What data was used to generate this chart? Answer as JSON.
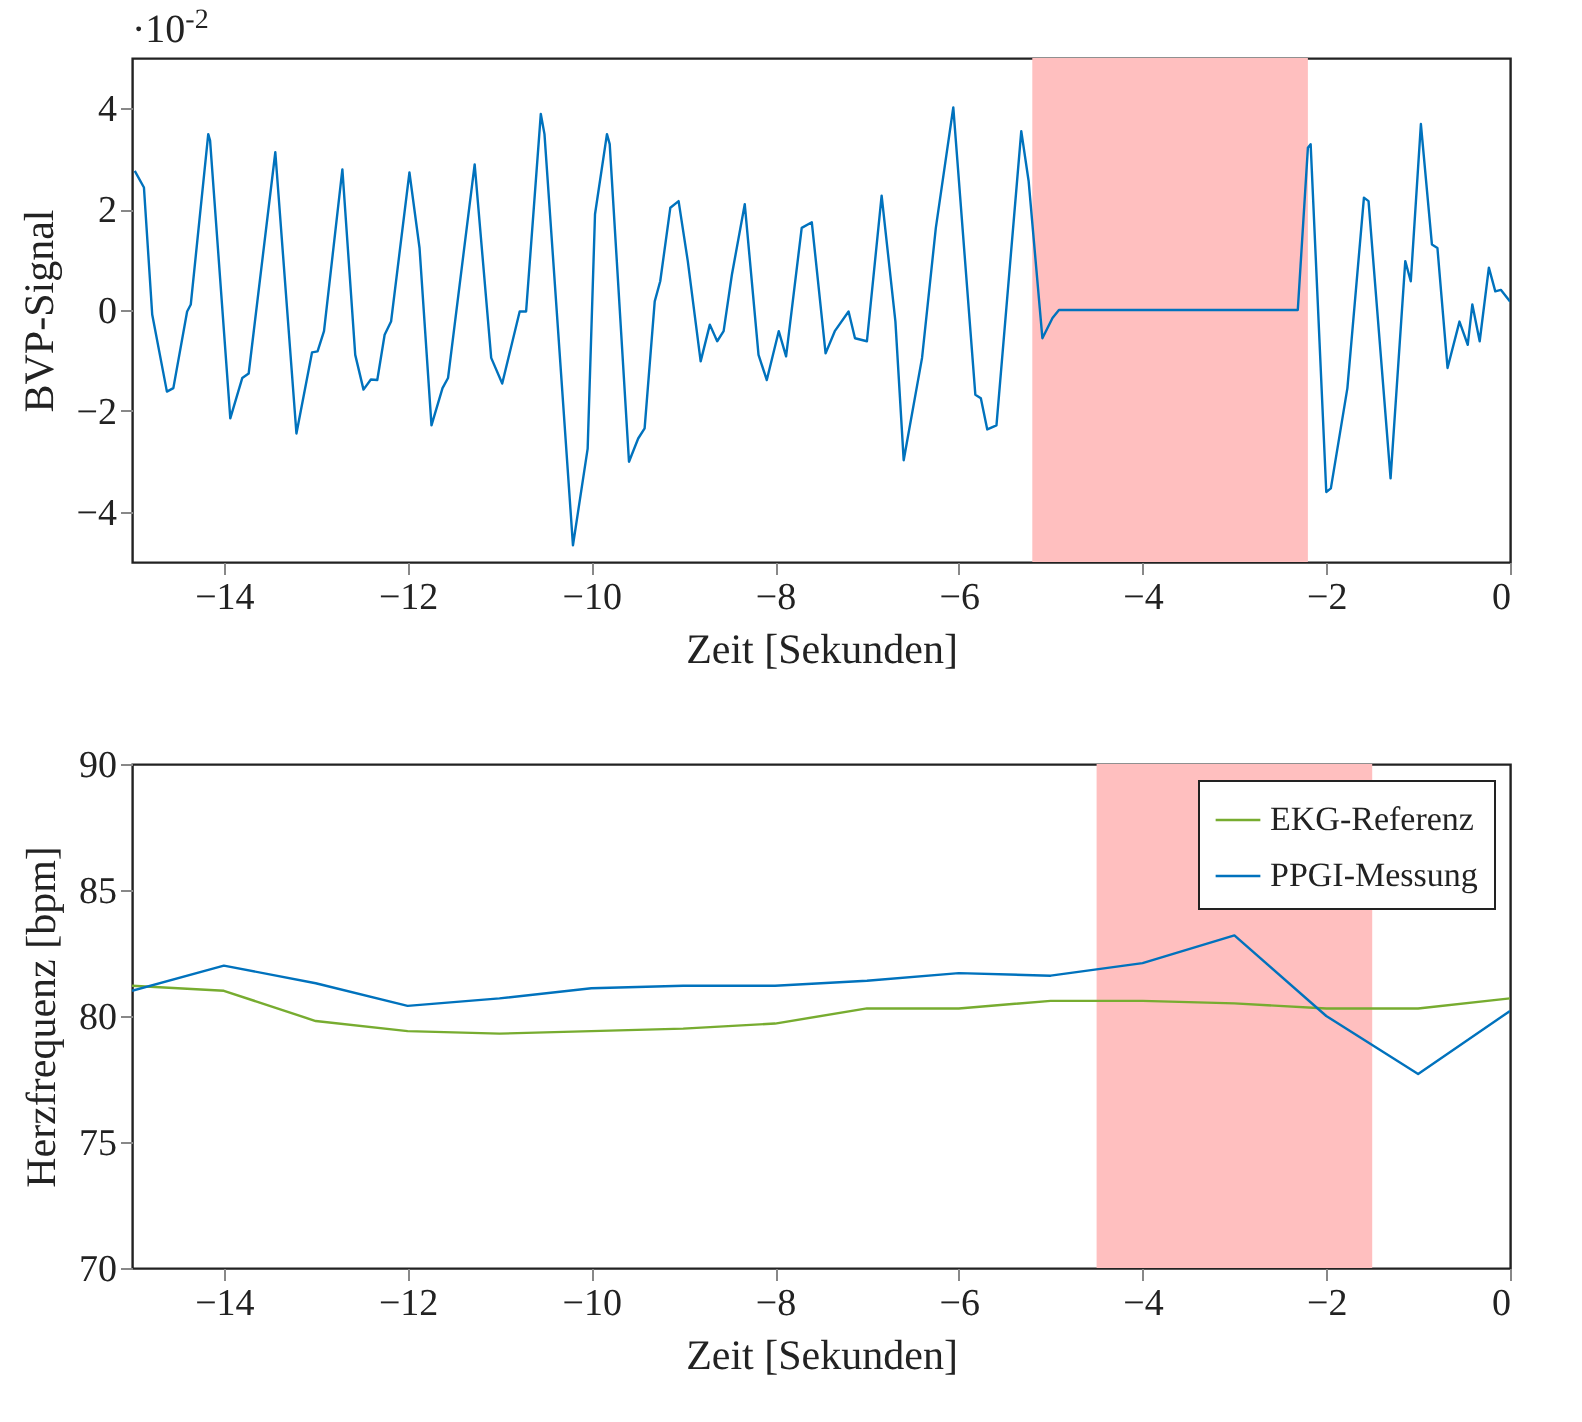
{
  "chart_data": [
    {
      "type": "line",
      "ylabel": "BVP-Signal",
      "xlabel": "Zeit [Sekunden]",
      "annotations": [
        "·10$^{-2}$"
      ],
      "xlim": [
        -15,
        0
      ],
      "xticks": [
        -14,
        -12,
        -10,
        -8,
        -6,
        -4,
        -2,
        0
      ],
      "ylim": [
        -5,
        5
      ],
      "yticks": [
        -4,
        -2,
        0,
        2,
        4
      ],
      "grid": false,
      "bands": [
        {
          "axis": "x",
          "from": -5.2,
          "to": -2.2,
          "color": "#ffbfbf"
        }
      ],
      "series": [
        {
          "color": "#0072bd",
          "x": [
            -14.97,
            -14.87,
            -14.78,
            -14.62,
            -14.55,
            -14.4,
            -14.36,
            -14.17,
            -14.15,
            -13.93,
            -13.8,
            -13.73,
            -13.44,
            -13.21,
            -13.04,
            -12.98,
            -12.91,
            -12.71,
            -12.57,
            -12.48,
            -12.4,
            -12.33,
            -12.25,
            -12.18,
            -11.98,
            -11.87,
            -11.74,
            -11.62,
            -11.56,
            -11.27,
            -11.09,
            -10.97,
            -10.78,
            -10.71,
            -10.55,
            -10.51,
            -10.2,
            -10.04,
            -9.96,
            -9.83,
            -9.8,
            -9.59,
            -9.49,
            -9.42,
            -9.31,
            -9.25,
            -9.14,
            -9.05,
            -8.95,
            -8.81,
            -8.71,
            -8.63,
            -8.56,
            -8.47,
            -8.33,
            -8.18,
            -8.09,
            -7.96,
            -7.88,
            -7.71,
            -7.6,
            -7.45,
            -7.35,
            -7.2,
            -7.13,
            -7.0,
            -6.84,
            -6.69,
            -6.6,
            -6.4,
            -6.25,
            -6.06,
            -5.82,
            -5.76,
            -5.69,
            -5.59,
            -5.32,
            -5.24,
            -5.09,
            -4.98,
            -4.91,
            -2.31,
            -2.2,
            -2.17,
            -2.0,
            -1.95,
            -1.77,
            -1.59,
            -1.54,
            -1.3,
            -1.14,
            -1.08,
            -0.97,
            -0.85,
            -0.79,
            -0.68,
            -0.55,
            -0.46,
            -0.41,
            -0.33,
            -0.23,
            -0.16,
            -0.1,
            0.0
          ],
          "values": [
            2.76,
            2.43,
            -0.09,
            -1.62,
            -1.55,
            -0.03,
            0.11,
            3.49,
            3.36,
            -2.15,
            -1.35,
            -1.26,
            3.13,
            -2.45,
            -0.84,
            -0.82,
            -0.42,
            2.79,
            -0.89,
            -1.58,
            -1.38,
            -1.39,
            -0.49,
            -0.23,
            2.73,
            1.23,
            -2.29,
            -1.55,
            -1.35,
            2.89,
            -0.95,
            -1.46,
            -0.03,
            -0.03,
            3.89,
            3.49,
            -4.67,
            -2.75,
            1.9,
            3.49,
            3.29,
            -3.01,
            -2.55,
            -2.35,
            0.17,
            0.57,
            2.03,
            2.16,
            0.97,
            -1.02,
            -0.29,
            -0.62,
            -0.42,
            0.7,
            2.1,
            -0.89,
            -1.39,
            -0.42,
            -0.92,
            1.63,
            1.74,
            -0.86,
            -0.42,
            -0.03,
            -0.56,
            -0.62,
            2.27,
            -0.23,
            -2.98,
            -0.95,
            1.63,
            4.02,
            -1.68,
            -1.75,
            -2.37,
            -2.29,
            3.55,
            2.56,
            -0.56,
            -0.16,
            0.0,
            0.0,
            3.22,
            3.29,
            -3.61,
            -3.54,
            -1.55,
            2.23,
            2.16,
            -3.34,
            0.97,
            0.57,
            3.69,
            1.3,
            1.23,
            -1.15,
            -0.23,
            -0.69,
            0.11,
            -0.62,
            0.84,
            0.37,
            0.4,
            0.17
          ]
        }
      ]
    },
    {
      "type": "line",
      "ylabel": "Herzfrequenz [bpm]",
      "xlabel": "Zeit [Sekunden]",
      "xlim": [
        -15,
        0
      ],
      "xticks": [
        -14,
        -12,
        -10,
        -8,
        -6,
        -4,
        -2,
        0
      ],
      "ylim": [
        70,
        90
      ],
      "yticks": [
        70,
        75,
        80,
        85,
        90
      ],
      "grid": false,
      "legend": "top right",
      "bands": [
        {
          "axis": "x",
          "from": -4.5,
          "to": -1.5,
          "color": "#ffbfbf"
        }
      ],
      "x": [
        -15,
        -14,
        -13,
        -12,
        -11,
        -10,
        -9,
        -8,
        -7,
        -6,
        -5,
        -4,
        -3,
        -2,
        -1,
        0
      ],
      "series": [
        {
          "name": "EKG-Referenz",
          "color": "#77ac30",
          "values": [
            81.2,
            81.0,
            79.8,
            79.4,
            79.3,
            79.4,
            79.5,
            79.7,
            80.3,
            80.3,
            80.6,
            80.6,
            80.5,
            80.3,
            80.3,
            80.7
          ]
        },
        {
          "name": "PPGI-Messung",
          "color": "#0072bd",
          "values": [
            81.0,
            82.0,
            81.3,
            80.4,
            80.7,
            81.1,
            81.2,
            81.2,
            81.4,
            81.7,
            81.6,
            82.1,
            83.2,
            80.0,
            77.7,
            80.2
          ]
        }
      ]
    }
  ]
}
